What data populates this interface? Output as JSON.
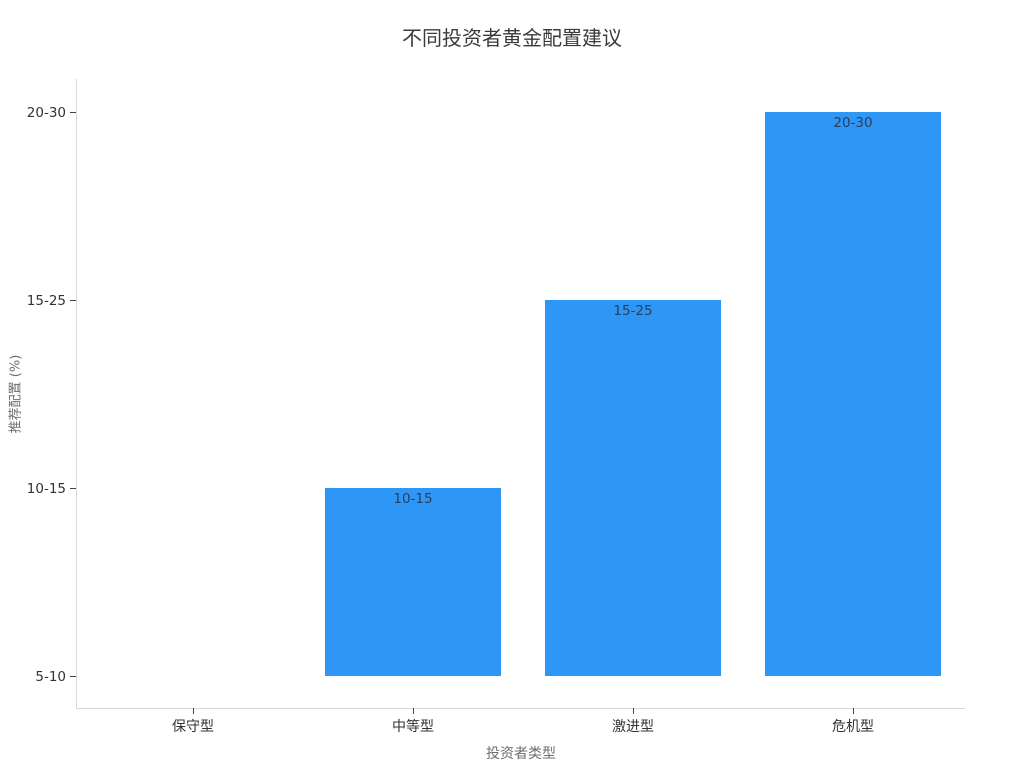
{
  "chart_data": {
    "type": "bar",
    "title": "不同投资者黄金配置建议",
    "xlabel": "投资者类型",
    "ylabel": "推荐配置 (%)",
    "categories": [
      "保守型",
      "中等型",
      "激进型",
      "危机型"
    ],
    "values": [
      "5-10",
      "10-15",
      "15-25",
      "20-30"
    ],
    "value_positions": [
      0,
      1,
      2,
      3
    ],
    "bar_labels": [
      "",
      "10-15",
      "15-25",
      "20-30"
    ],
    "y_ticks": [
      "5-10",
      "10-15",
      "15-25",
      "20-30"
    ],
    "grid": false,
    "legend": false,
    "colors": {
      "bar_fill": "#2e96f5",
      "bar_label": "#2a3f5f",
      "title_text": "#3b3b3b",
      "tick_text": "#333333",
      "axis_title_text": "#6e6e6e",
      "spine": "#d9d9d9",
      "tick_mark": "#444444",
      "background": "#ffffff"
    }
  }
}
